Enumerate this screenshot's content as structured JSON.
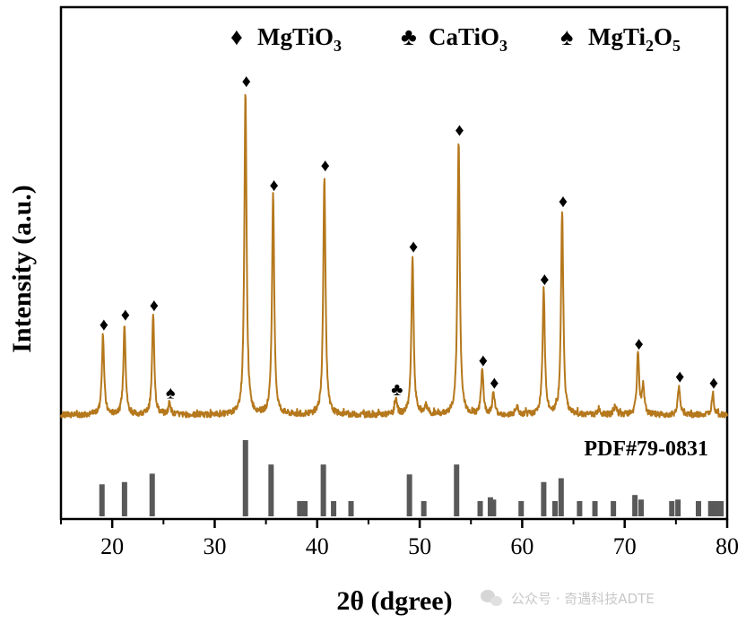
{
  "chart_data": {
    "type": "line",
    "xlabel": "2θ (dgree)",
    "ylabel": "Intensity (a.u.)",
    "xlim": [
      15,
      80
    ],
    "x_ticks": [
      20,
      30,
      40,
      50,
      60,
      70,
      80
    ],
    "colors": {
      "pattern": "#b5781c",
      "reference": "#595959",
      "text": "#000000"
    },
    "legend": {
      "placement": "top-right",
      "entries": [
        {
          "symbol": "diamond",
          "glyph": "♦",
          "name": "MgTiO",
          "sub": "3"
        },
        {
          "symbol": "club",
          "glyph": "♣",
          "name": "CaTiO",
          "sub": "3"
        },
        {
          "symbol": "spade",
          "glyph": "♠",
          "name": "MgTi",
          "sub": "2",
          "name2": "O",
          "sub2": "5"
        }
      ]
    },
    "pattern_peaks": [
      {
        "x": 19.1,
        "y": 0.25,
        "phase": "diamond"
      },
      {
        "x": 21.2,
        "y": 0.28,
        "phase": "diamond"
      },
      {
        "x": 24.0,
        "y": 0.31,
        "phase": "diamond"
      },
      {
        "x": 25.6,
        "y": 0.04,
        "phase": "spade"
      },
      {
        "x": 33.0,
        "y": 1.0,
        "phase": "diamond"
      },
      {
        "x": 35.7,
        "y": 0.68,
        "phase": "diamond"
      },
      {
        "x": 40.7,
        "y": 0.74,
        "phase": "diamond"
      },
      {
        "x": 47.7,
        "y": 0.05,
        "phase": "club"
      },
      {
        "x": 49.3,
        "y": 0.49,
        "phase": "diamond"
      },
      {
        "x": 50.6,
        "y": 0.03
      },
      {
        "x": 53.8,
        "y": 0.85,
        "phase": "diamond"
      },
      {
        "x": 56.1,
        "y": 0.14,
        "phase": "diamond"
      },
      {
        "x": 57.2,
        "y": 0.07,
        "phase": "diamond"
      },
      {
        "x": 59.5,
        "y": 0.02
      },
      {
        "x": 62.1,
        "y": 0.39,
        "phase": "diamond"
      },
      {
        "x": 63.9,
        "y": 0.63,
        "phase": "diamond"
      },
      {
        "x": 67.5,
        "y": 0.02
      },
      {
        "x": 69.1,
        "y": 0.03
      },
      {
        "x": 71.3,
        "y": 0.19,
        "phase": "diamond"
      },
      {
        "x": 71.8,
        "y": 0.09
      },
      {
        "x": 75.3,
        "y": 0.09,
        "phase": "diamond"
      },
      {
        "x": 78.6,
        "y": 0.07,
        "phase": "diamond"
      }
    ],
    "reference": {
      "label": "PDF#79-0831",
      "lines": [
        {
          "x": 19.0,
          "y": 0.42
        },
        {
          "x": 21.2,
          "y": 0.45
        },
        {
          "x": 23.9,
          "y": 0.56
        },
        {
          "x": 33.0,
          "y": 1.0
        },
        {
          "x": 35.5,
          "y": 0.68
        },
        {
          "x": 38.3,
          "y": 0.2
        },
        {
          "x": 38.8,
          "y": 0.2
        },
        {
          "x": 40.6,
          "y": 0.68
        },
        {
          "x": 41.6,
          "y": 0.2
        },
        {
          "x": 43.3,
          "y": 0.2
        },
        {
          "x": 49.0,
          "y": 0.55
        },
        {
          "x": 50.4,
          "y": 0.2
        },
        {
          "x": 53.6,
          "y": 0.68
        },
        {
          "x": 55.9,
          "y": 0.2
        },
        {
          "x": 56.9,
          "y": 0.25
        },
        {
          "x": 57.2,
          "y": 0.22
        },
        {
          "x": 59.9,
          "y": 0.2
        },
        {
          "x": 62.1,
          "y": 0.45
        },
        {
          "x": 63.2,
          "y": 0.2
        },
        {
          "x": 63.8,
          "y": 0.5
        },
        {
          "x": 65.6,
          "y": 0.2
        },
        {
          "x": 67.1,
          "y": 0.2
        },
        {
          "x": 68.9,
          "y": 0.2
        },
        {
          "x": 71.0,
          "y": 0.28
        },
        {
          "x": 71.6,
          "y": 0.22
        },
        {
          "x": 74.6,
          "y": 0.2
        },
        {
          "x": 75.2,
          "y": 0.22
        },
        {
          "x": 77.2,
          "y": 0.2
        },
        {
          "x": 78.4,
          "y": 0.2
        },
        {
          "x": 78.9,
          "y": 0.2
        },
        {
          "x": 79.4,
          "y": 0.2
        }
      ]
    }
  },
  "watermark": {
    "text": "公众号 · 奇遇科技ADTE"
  }
}
